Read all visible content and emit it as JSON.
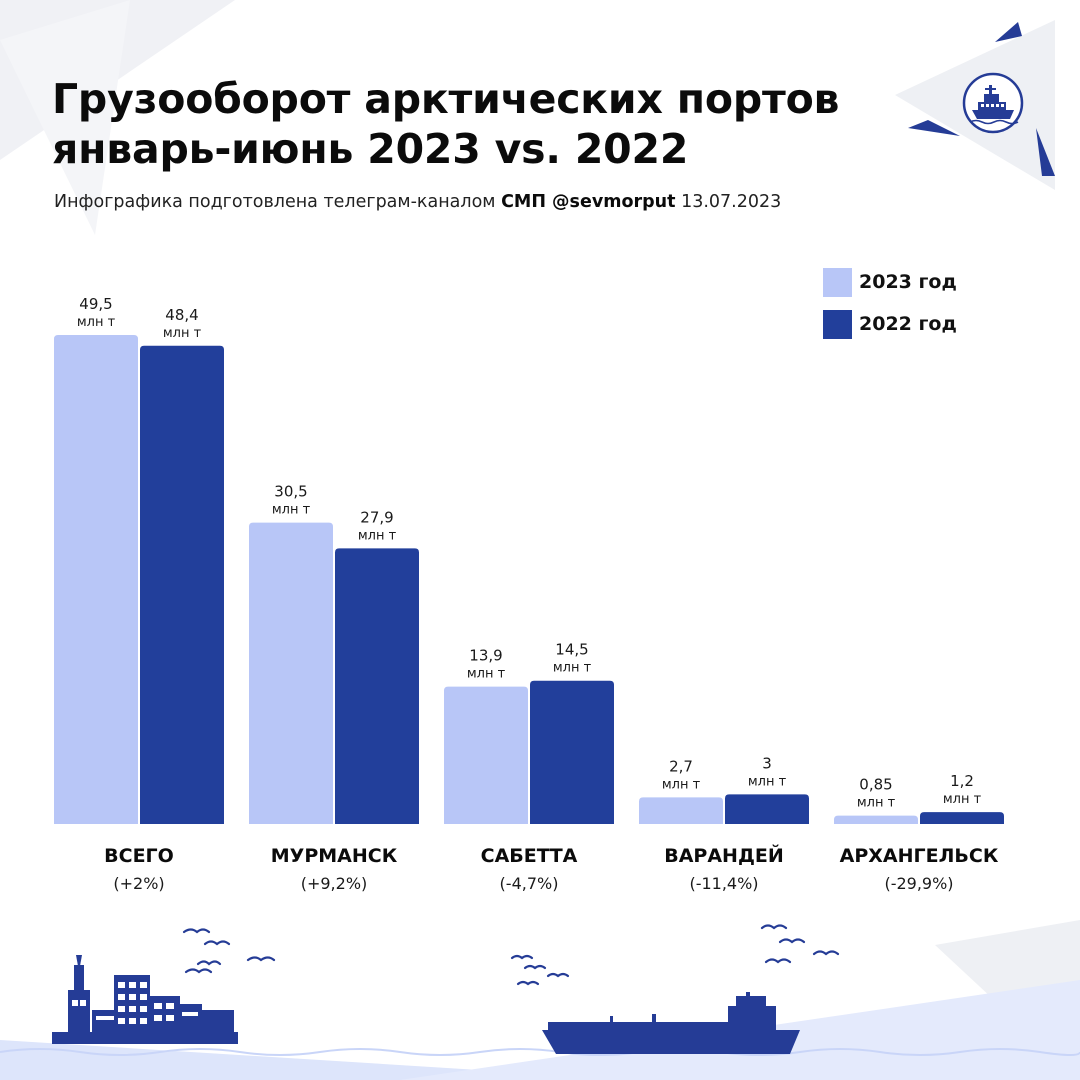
{
  "title_line1": "Грузооборот арктических портов",
  "title_line2": "январь-июнь 2023 vs. 2022",
  "subtitle": {
    "prefix": "Инфографика подготовлена телеграм-каналом",
    "channel": "СМП @sevmorput",
    "date": "13.07.2023"
  },
  "logo": {
    "icon": "icebreaker-logo-icon"
  },
  "colors": {
    "series_2023": "#b8c6f7",
    "series_2022": "#223f9b",
    "accent": "#253c96"
  },
  "decor": {
    "left": "port-skyline-icon",
    "right": "tanker-ship-icon",
    "birds": "seagull-icon"
  },
  "chart_data": {
    "type": "bar",
    "categories": [
      "ВСЕГО",
      "МУРМАНСК",
      "САБЕТТА",
      "ВАРАНДЕЙ",
      "АРХАНГЕЛЬСК"
    ],
    "changes": [
      "(+2%)",
      "(+9,2%)",
      "(-4,7%)",
      "(-11,4%)",
      "(-29,9%)"
    ],
    "unit": "млн т",
    "series": [
      {
        "name": "2023 год",
        "values": [
          49.5,
          30.5,
          13.9,
          2.7,
          0.85
        ],
        "labels": [
          "49,5",
          "30,5",
          "13,9",
          "2,7",
          "0,85"
        ]
      },
      {
        "name": "2022 год",
        "values": [
          48.4,
          27.9,
          14.5,
          3,
          1.2
        ],
        "labels": [
          "48,4",
          "27,9",
          "14,5",
          "3",
          "1,2"
        ]
      }
    ],
    "ylim": [
      0,
      50
    ],
    "legend": "top-right",
    "grid": false
  }
}
